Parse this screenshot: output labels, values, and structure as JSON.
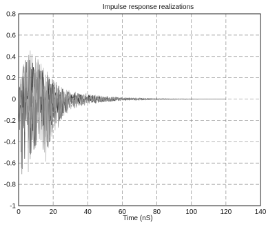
{
  "chart_data": {
    "type": "line",
    "title": "Impulse response realizations",
    "xlabel": "Time (nS)",
    "ylabel": "",
    "xlim": [
      0,
      140
    ],
    "ylim": [
      -1,
      0.8
    ],
    "xticks": [
      0,
      20,
      40,
      60,
      80,
      100,
      120,
      140
    ],
    "yticks": [
      0.8,
      0.6,
      0.4,
      0.2,
      0,
      -0.2,
      -0.4,
      -0.6,
      -0.8,
      -1
    ],
    "grid": true,
    "x_extent": [
      0,
      120
    ],
    "envelope": [
      {
        "x": 0,
        "max": 0.1,
        "min": -0.2
      },
      {
        "x": 2,
        "max": 0.3,
        "min": -0.95
      },
      {
        "x": 5,
        "max": 0.48,
        "min": -0.72
      },
      {
        "x": 8,
        "max": 0.45,
        "min": -0.55
      },
      {
        "x": 12,
        "max": 0.38,
        "min": -0.5
      },
      {
        "x": 16,
        "max": 0.28,
        "min": -0.62
      },
      {
        "x": 20,
        "max": 0.2,
        "min": -0.35
      },
      {
        "x": 25,
        "max": 0.12,
        "min": -0.22
      },
      {
        "x": 30,
        "max": 0.08,
        "min": -0.1
      },
      {
        "x": 40,
        "max": 0.05,
        "min": -0.05
      },
      {
        "x": 50,
        "max": 0.03,
        "min": -0.03
      },
      {
        "x": 60,
        "max": 0.015,
        "min": -0.015
      },
      {
        "x": 80,
        "max": 0.005,
        "min": -0.005
      },
      {
        "x": 120,
        "max": 0.0,
        "min": 0.0
      }
    ],
    "series_colors": [
      "#222222",
      "#666666",
      "#999999"
    ]
  }
}
